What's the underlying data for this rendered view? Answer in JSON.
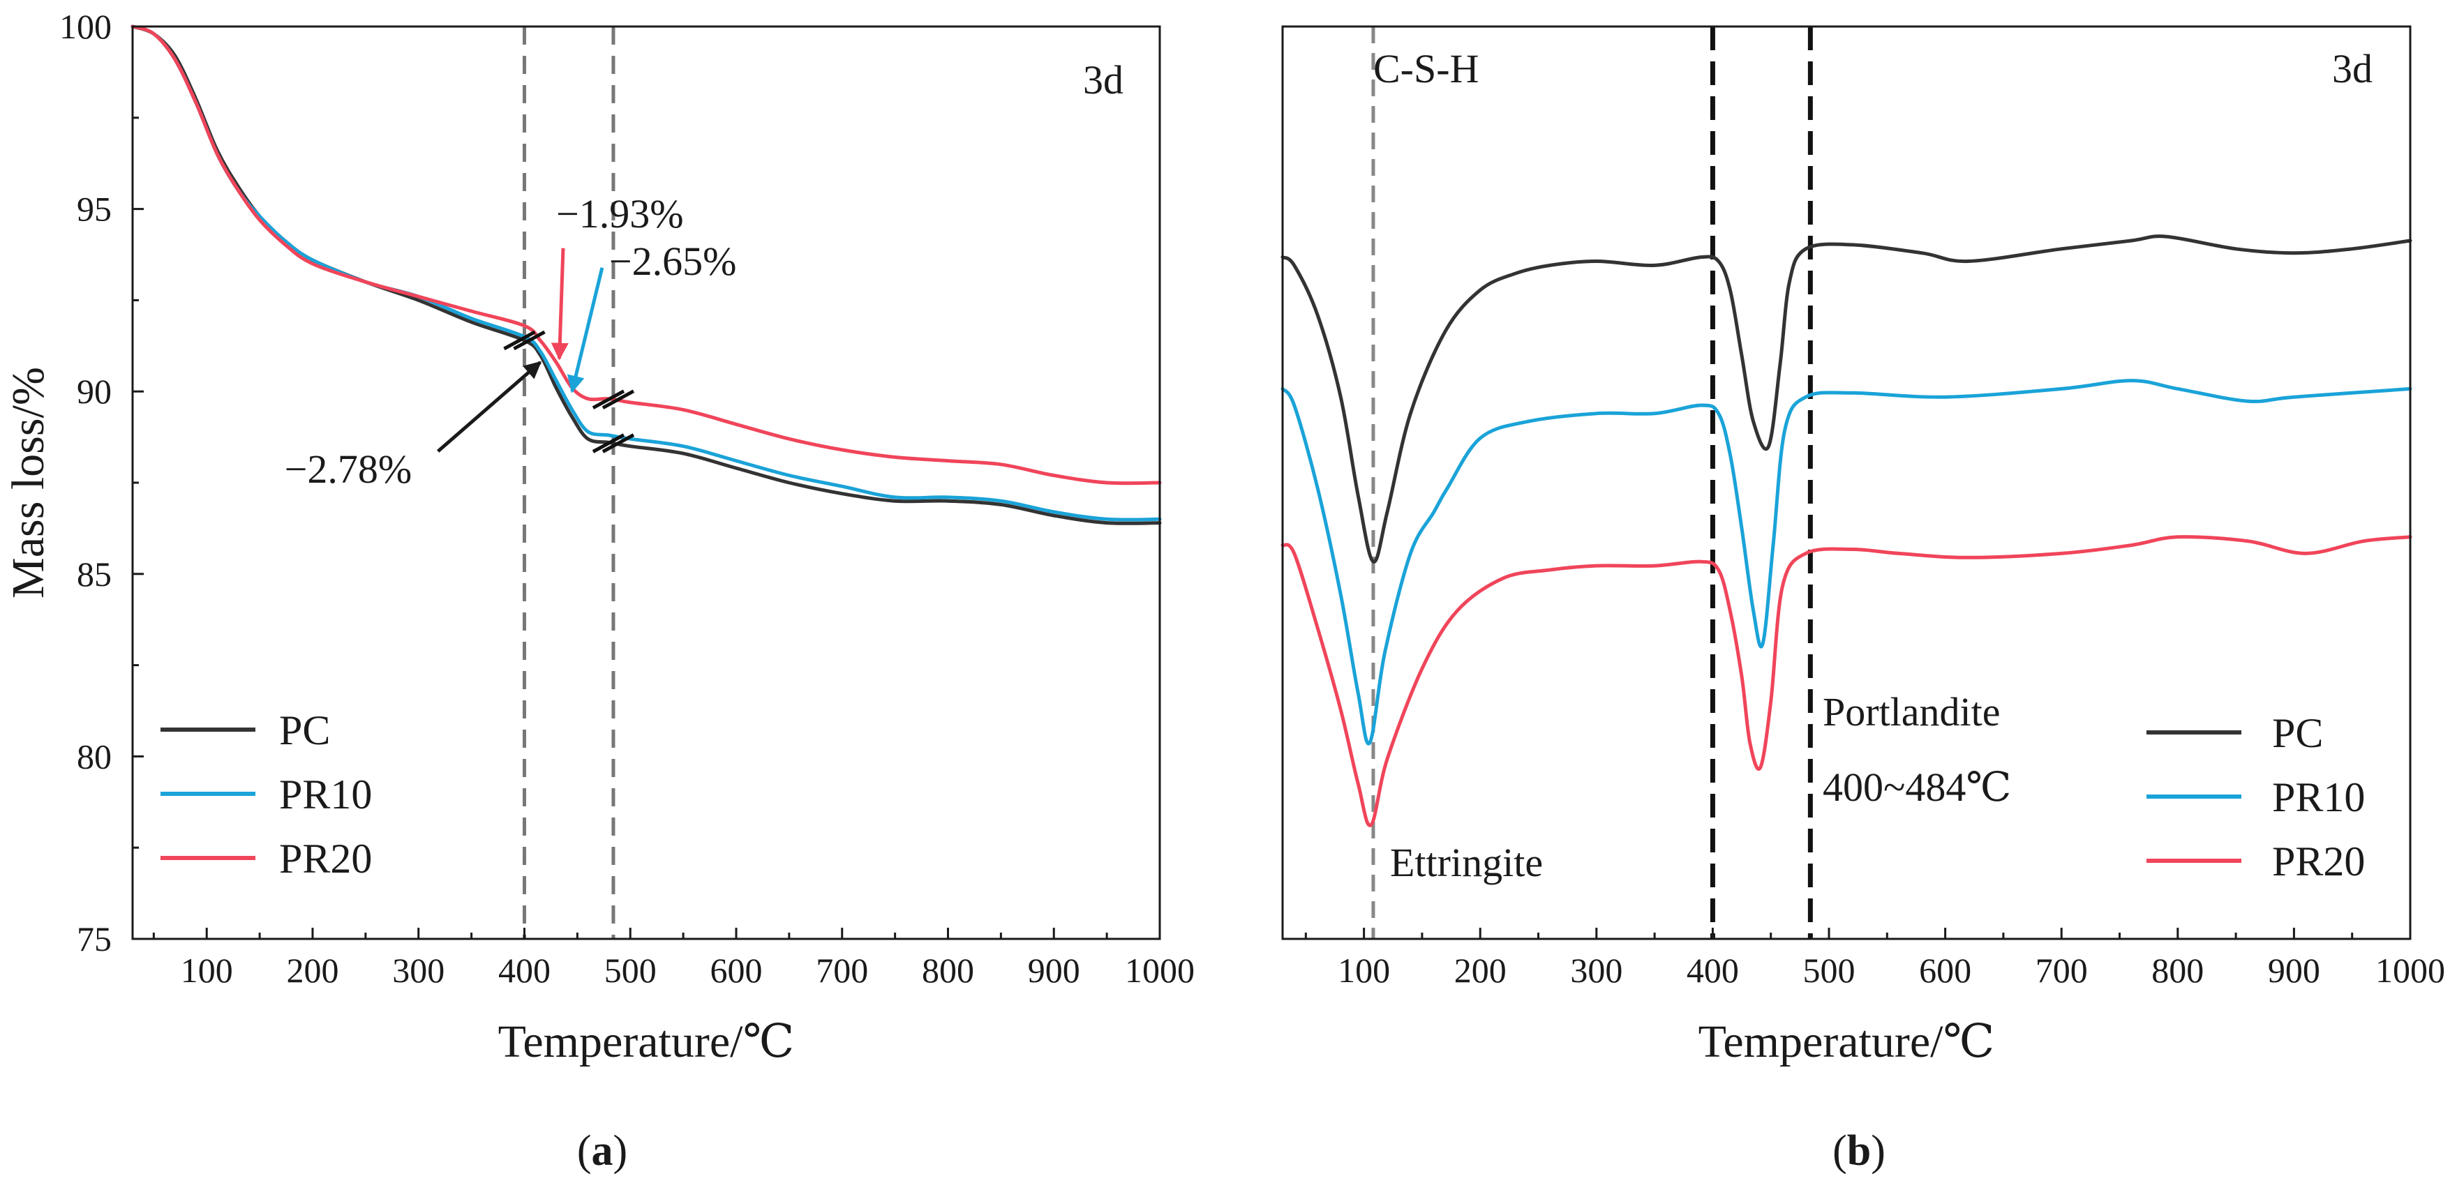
{
  "chart_data": [
    {
      "panel": "a",
      "type": "line",
      "label": "a",
      "tag": "3d",
      "xlabel": "Temperature/℃",
      "ylabel": "Mass loss/%",
      "xlim": [
        30,
        1000
      ],
      "ylim": [
        75,
        100
      ],
      "xticks": [
        100,
        200,
        300,
        400,
        500,
        600,
        700,
        800,
        900,
        1000
      ],
      "yticks": [
        75,
        80,
        85,
        90,
        95,
        100
      ],
      "vlines": [
        400,
        484
      ],
      "legend": {
        "position": "bottom-left",
        "entries": [
          "PC",
          "PR10",
          "PR20"
        ]
      },
      "series": [
        {
          "name": "PC",
          "color": "#333333",
          "x": [
            30,
            50,
            70,
            90,
            110,
            130,
            150,
            175,
            200,
            250,
            300,
            350,
            400,
            415,
            430,
            445,
            460,
            480,
            500,
            550,
            600,
            650,
            700,
            750,
            800,
            850,
            900,
            950,
            1000
          ],
          "y": [
            100,
            99.8,
            99.2,
            98.0,
            96.6,
            95.6,
            94.8,
            94.1,
            93.6,
            93.0,
            92.5,
            91.9,
            91.4,
            91.0,
            90.1,
            89.3,
            88.7,
            88.6,
            88.5,
            88.3,
            87.9,
            87.5,
            87.2,
            87.0,
            87.0,
            86.9,
            86.6,
            86.4,
            86.4
          ]
        },
        {
          "name": "PR10",
          "color": "#1aa3d8",
          "x": [
            30,
            50,
            70,
            90,
            110,
            130,
            150,
            175,
            200,
            250,
            300,
            350,
            400,
            415,
            430,
            445,
            460,
            480,
            500,
            550,
            600,
            650,
            700,
            750,
            800,
            850,
            900,
            950,
            1000
          ],
          "y": [
            100,
            99.8,
            99.1,
            97.9,
            96.5,
            95.5,
            94.8,
            94.1,
            93.6,
            93.0,
            92.6,
            92.0,
            91.5,
            91.1,
            90.3,
            89.5,
            88.9,
            88.8,
            88.7,
            88.5,
            88.1,
            87.7,
            87.4,
            87.1,
            87.1,
            87.0,
            86.7,
            86.5,
            86.5
          ]
        },
        {
          "name": "PR20",
          "color": "#f0455a",
          "x": [
            30,
            50,
            70,
            90,
            110,
            130,
            150,
            175,
            200,
            250,
            300,
            350,
            400,
            415,
            430,
            445,
            460,
            480,
            500,
            550,
            600,
            650,
            700,
            750,
            800,
            850,
            900,
            950,
            1000
          ],
          "y": [
            100,
            99.8,
            99.1,
            97.9,
            96.5,
            95.5,
            94.7,
            94.0,
            93.5,
            93.0,
            92.6,
            92.2,
            91.8,
            91.4,
            90.8,
            90.1,
            89.8,
            89.8,
            89.7,
            89.5,
            89.1,
            88.7,
            88.4,
            88.2,
            88.1,
            88.0,
            87.7,
            87.5,
            87.5
          ]
        }
      ],
      "annotations": [
        {
          "text": "−1.93%",
          "color": "#f0455a",
          "text_at": [
            430,
            94.5
          ],
          "arrow_to": [
            433,
            90.9
          ]
        },
        {
          "text": "−2.65%",
          "color": "#1aa3d8",
          "text_at": [
            480,
            93.2
          ],
          "arrow_to": [
            445,
            90.0
          ]
        },
        {
          "text": "−2.78%",
          "color": "#1a1a1a",
          "text_at": [
            180,
            87.5
          ],
          "arrow_to": [
            415,
            90.8
          ]
        }
      ]
    },
    {
      "panel": "b",
      "type": "line",
      "label": "b",
      "tag": "3d",
      "xlabel": "Temperature/℃",
      "ylabel": "",
      "y_hidden": true,
      "xlim": [
        30,
        1000
      ],
      "ylim": [
        0,
        100
      ],
      "xticks": [
        100,
        200,
        300,
        400,
        500,
        600,
        700,
        800,
        900,
        1000
      ],
      "vlines": [
        {
          "x": 108,
          "style": "gray"
        },
        {
          "x": 400,
          "style": "black"
        },
        {
          "x": 484,
          "style": "black"
        }
      ],
      "legend": {
        "position": "bottom-right",
        "entries": [
          "PC",
          "PR10",
          "PR20"
        ]
      },
      "labels": {
        "csh": "C-S-H",
        "ettringite": "Ettringite",
        "portlandite": "Portlandite",
        "portlandite_range": "400~484℃"
      },
      "series": [
        {
          "name": "PC",
          "color": "#333333",
          "x": [
            30,
            40,
            60,
            80,
            95,
            108,
            120,
            140,
            170,
            200,
            230,
            260,
            300,
            350,
            390,
            405,
            415,
            425,
            435,
            448,
            458,
            466,
            480,
            520,
            580,
            620,
            700,
            760,
            790,
            850,
            900,
            950,
            1000
          ],
          "y": [
            73,
            72,
            66,
            56,
            44,
            36,
            42,
            54,
            64,
            69,
            71,
            72,
            72.5,
            72,
            73,
            72.5,
            69,
            61,
            53,
            50,
            60,
            70,
            74,
            74.5,
            73.5,
            72.5,
            74,
            75,
            75.5,
            74,
            73.5,
            74,
            75
          ]
        },
        {
          "name": "PR10",
          "color": "#1aa3d8",
          "x": [
            30,
            40,
            60,
            80,
            95,
            105,
            118,
            140,
            160,
            172,
            200,
            240,
            300,
            350,
            390,
            405,
            415,
            425,
            435,
            443,
            452,
            462,
            480,
            520,
            600,
            700,
            760,
            800,
            860,
            900,
            1000
          ],
          "y": [
            57,
            55,
            45,
            32,
            20,
            14,
            25,
            37,
            42,
            45,
            51,
            53,
            54,
            54,
            55,
            54,
            49,
            40,
            30,
            26,
            38,
            52,
            56,
            56.5,
            56,
            57,
            58,
            57,
            55.5,
            56,
            57
          ]
        },
        {
          "name": "PR20",
          "color": "#f0455a",
          "x": [
            30,
            40,
            60,
            80,
            95,
            106,
            120,
            150,
            180,
            220,
            260,
            300,
            350,
            390,
            405,
            415,
            425,
            432,
            441,
            450,
            460,
            480,
            520,
            560,
            620,
            700,
            760,
            800,
            860,
            910,
            960,
            1000
          ],
          "y": [
            38,
            37,
            28,
            18,
            9,
            4,
            12,
            23,
            30,
            34,
            35,
            35.5,
            35.5,
            36,
            35,
            30,
            22,
            14,
            11,
            19,
            33,
            37,
            37.5,
            37,
            36.5,
            37,
            38,
            39,
            38.5,
            37,
            38.5,
            39
          ]
        }
      ]
    }
  ]
}
